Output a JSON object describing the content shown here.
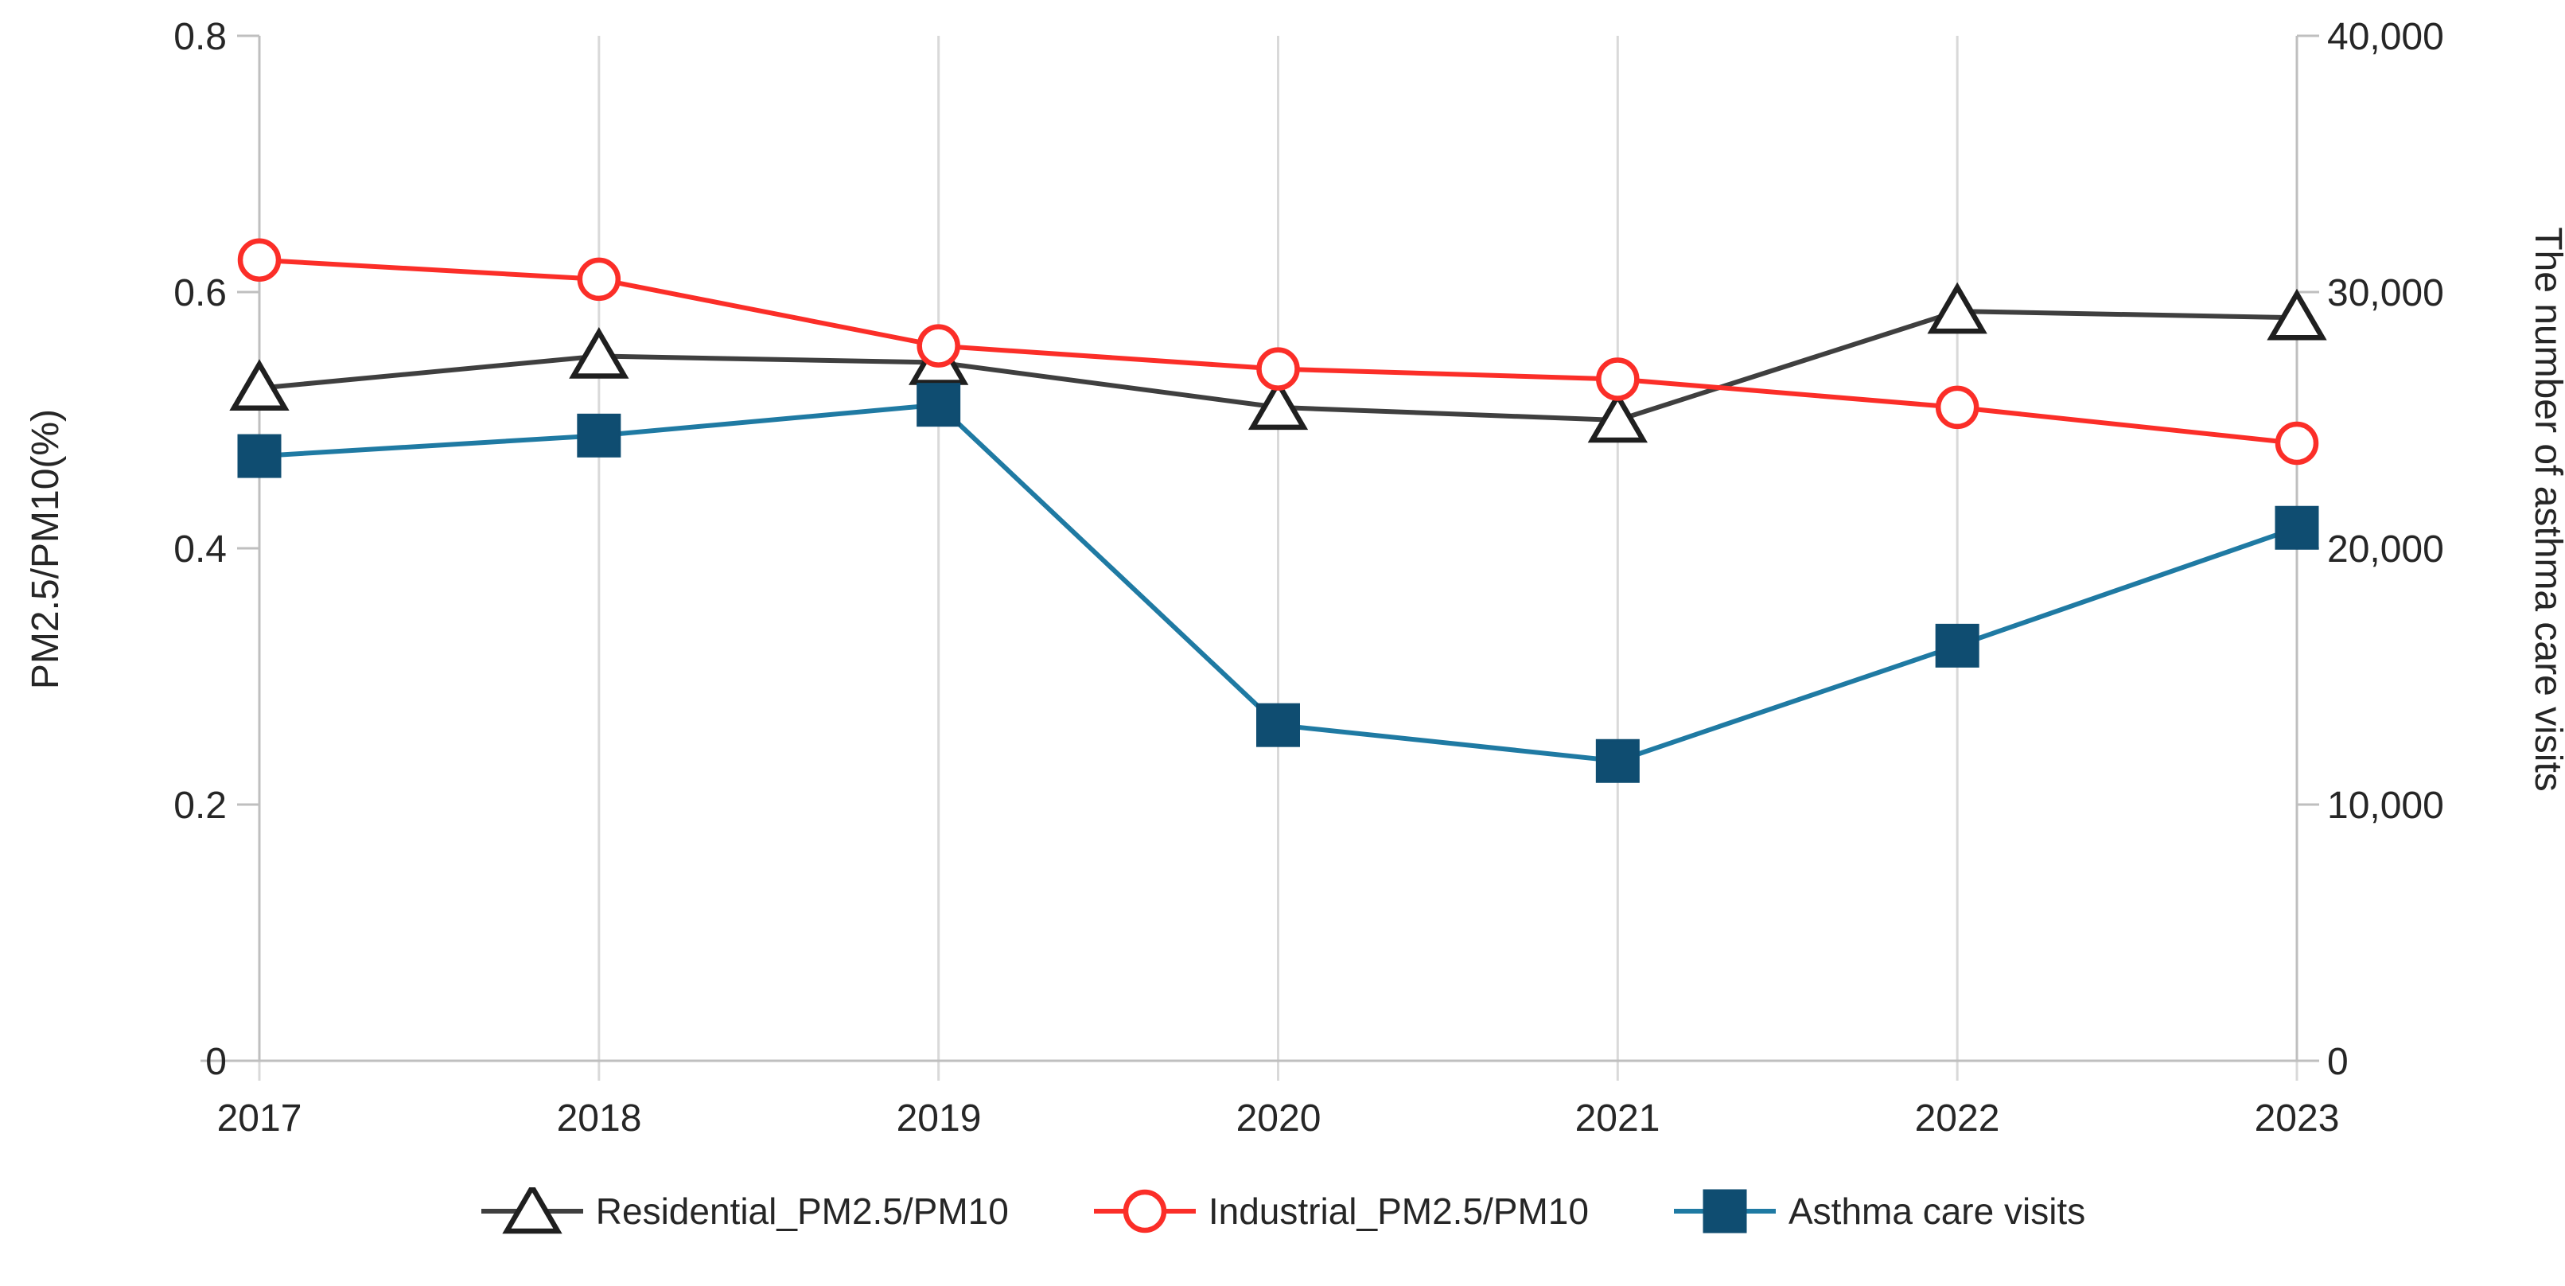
{
  "chart_data": {
    "type": "line",
    "x": [
      "2017",
      "2018",
      "2019",
      "2020",
      "2021",
      "2022",
      "2023"
    ],
    "series": [
      {
        "name": "Residential_PM2.5/PM10",
        "axis": "left",
        "marker": "triangle",
        "line_color": "#3f3f3f",
        "marker_stroke": "#1f1f1f",
        "marker_fill": "#ffffff",
        "values": [
          0.525,
          0.55,
          0.545,
          0.51,
          0.5,
          0.585,
          0.58
        ]
      },
      {
        "name": "Industrial_PM2.5/PM10",
        "axis": "left",
        "marker": "circle",
        "line_color": "#fb2e28",
        "marker_stroke": "#fb2e28",
        "marker_fill": "#ffffff",
        "values": [
          0.625,
          0.61,
          0.558,
          0.54,
          0.532,
          0.51,
          0.482
        ]
      },
      {
        "name": "Asthma care visits",
        "axis": "right",
        "marker": "square",
        "line_color": "#1f7aa3",
        "marker_stroke": "#0f4d71",
        "marker_fill": "#0f4d71",
        "values": [
          23600,
          24400,
          25600,
          13100,
          11700,
          16200,
          20800
        ]
      }
    ],
    "left_axis": {
      "title": "PM2.5/PM10(%)",
      "min": 0,
      "max": 0.8,
      "tick_labels_top_to_bottom": [
        "0.8",
        "0.6",
        "0.4",
        "0.2",
        "0"
      ]
    },
    "right_axis": {
      "title": "The number of asthma care visits",
      "min": 0,
      "max": 40000,
      "tick_labels_top_to_bottom": [
        "40,000",
        "30,000",
        "20,000",
        "10,000",
        "0"
      ]
    },
    "grid": "vertical-per-year",
    "legend_position": "bottom",
    "colors": {
      "gridline": "#d9d9d9",
      "axis_line": "#bfbfbf",
      "text": "#262626"
    }
  }
}
